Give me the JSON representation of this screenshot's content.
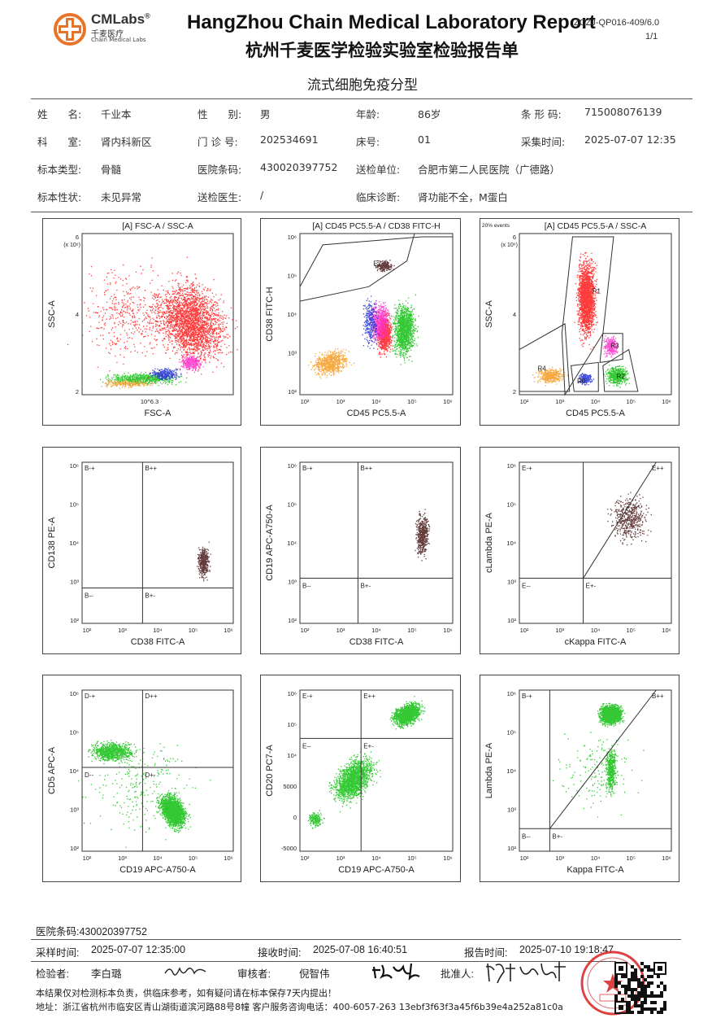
{
  "header": {
    "logo_name": "CMLabs",
    "logo_reg": "®",
    "logo_cn": "千麦医疗",
    "logo_en": "Chain Medical Labs",
    "title_en": "HangZhou Chain Medical Laboratory Report",
    "title_cn": "杭州千麦医学检验实验室检验报告单",
    "doc_no": "ZCZJ-QP016-409/6.0",
    "page_no": "1/1",
    "subtitle": "流式细胞免疫分型"
  },
  "patient": {
    "rows": [
      [
        [
          "姓　　名:",
          "千业本"
        ],
        [
          "性　　别:",
          "男"
        ],
        [
          "年龄:",
          "86岁"
        ],
        [
          "条 形 码:",
          "715008076139"
        ]
      ],
      [
        [
          "科　　室:",
          "肾内科新区"
        ],
        [
          "门 诊 号:",
          "202534691"
        ],
        [
          "床号:",
          "01"
        ],
        [
          "采集时间:",
          "2025-07-07 12:35"
        ]
      ],
      [
        [
          "标本类型:",
          "骨髓"
        ],
        [
          "医院条码:",
          "430020397752"
        ],
        [
          "送检单位:",
          "合肥市第二人民医院（广德路）"
        ],
        [
          "",
          ""
        ]
      ],
      [
        [
          "标本性状:",
          "未见异常"
        ],
        [
          "送检医生:",
          "/"
        ],
        [
          "临床诊断:",
          "肾功能不全，M蛋白"
        ],
        [
          "",
          ""
        ]
      ]
    ]
  },
  "plots": [
    {
      "title": "[A] FSC-A / SSC-A",
      "xlabel": "FSC-A",
      "ylabel": "SSC-A",
      "scale_note": "(x 10⁶)",
      "yticks": [
        "6",
        "4",
        "2"
      ],
      "xticks": [
        "10^6.3"
      ]
    },
    {
      "title": "[A] CD45 PC5.5-A / CD38 FITC-H",
      "xlabel": "CD45 PC5.5-A",
      "ylabel": "CD38 FITC-H",
      "gate": "E7",
      "yticks": [
        "10⁶",
        "10⁵",
        "10⁴",
        "10³",
        "10²"
      ],
      "xticks": [
        "10²",
        "10³",
        "10⁴",
        "10⁵",
        "10⁶"
      ]
    },
    {
      "title": "[A] CD45 PC5.5-A / SSC-A",
      "xlabel": "CD45 PC5.5-A",
      "ylabel": "SSC-A",
      "scale_note": "(x 10⁶)",
      "events": "20% events",
      "gates": [
        "R1",
        "R3",
        "R2",
        "R0",
        "R4"
      ],
      "yticks": [
        "6",
        "4",
        "2"
      ],
      "xticks": [
        "10²",
        "10³",
        "10⁴",
        "10⁵",
        "10⁶"
      ]
    },
    {
      "title": "",
      "xlabel": "CD38 FITC-A",
      "ylabel": "CD138 PE-A",
      "quads": [
        "B-+",
        "B++",
        "B--",
        "B+-"
      ]
    },
    {
      "title": "",
      "xlabel": "CD38 FITC-A",
      "ylabel": "CD19 APC-A750-A",
      "quads": [
        "B-+",
        "B++",
        "B--",
        "B+-"
      ]
    },
    {
      "title": "",
      "xlabel": "cKappa FITC-A",
      "ylabel": "cLambda PE-A",
      "quads": [
        "E-+",
        "E++",
        "E--",
        "E+-"
      ]
    },
    {
      "title": "",
      "xlabel": "CD19 APC-A750-A",
      "ylabel": "CD5 APC-A",
      "quads": [
        "D-+",
        "D++",
        "D--",
        "D+-"
      ]
    },
    {
      "title": "",
      "xlabel": "CD19 APC-A750-A",
      "ylabel": "CD20 PC7-A",
      "quads": [
        "E-+",
        "E++",
        "E--",
        "E+-"
      ],
      "yticks": [
        "10⁶",
        "10⁵",
        "10⁴",
        "5000",
        "0",
        "-5000"
      ]
    },
    {
      "title": "",
      "xlabel": "Kappa FITC-A",
      "ylabel": "Lambda PE-A",
      "quads": [
        "B-+",
        "B++",
        "B--",
        "B+-"
      ]
    }
  ],
  "footer": {
    "hospital_barcode": "医院条码:430020397752",
    "sample_time_label": "采样时间:",
    "sample_time": "2025-07-07 12:35:00",
    "receive_time_label": "接收时间:",
    "receive_time": "2025-07-08 16:40:51",
    "report_time_label": "报告时间:",
    "report_time": "2025-07-10 19:18:47",
    "tester_label": "检验者:",
    "tester": "李白璐",
    "reviewer_label": "审核者:",
    "reviewer": "倪智伟",
    "approver_label": "批准人:",
    "disclaimer": "本结果仅对检测标本负责，供临床参考，如有疑问请在标本保存7天内提出！",
    "address": "地址：浙江省杭州市临安区青山湖街道滨河路88号8幢 客户服务咨询电话：400-6057-263 13ebf3f63f3a45f6b39e4a252a81c0a"
  },
  "colors": {
    "red": "#ff1a1a",
    "green": "#10c010",
    "magenta": "#ff30d0",
    "orange": "#f59a20",
    "blue": "#2030d0",
    "dark": "#4a1a1a",
    "logo": "#e8742a"
  }
}
